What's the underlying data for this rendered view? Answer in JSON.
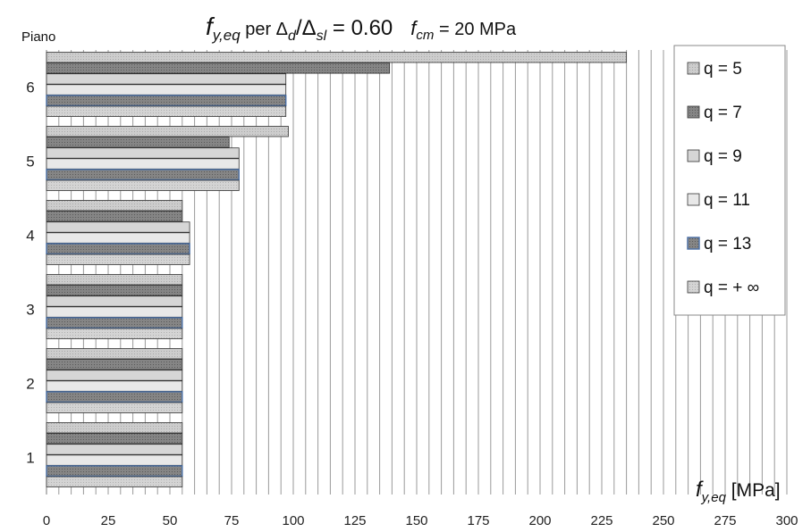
{
  "chart_data": {
    "type": "bar",
    "orientation": "horizontal",
    "title": {
      "symbol": "f",
      "symbol_sub": "y,eq",
      "mid": " per Δ",
      "sub_d": "d",
      "slash": "/Δ",
      "sub_sl": "sl",
      "ratio": " = 0.60",
      "fcm_symbol": "f",
      "fcm_sub": "cm",
      "fcm_value": " = 20 MPa"
    },
    "ylabel": "Piano",
    "xlabel": {
      "symbol": "f",
      "sub": "y,eq",
      "unit": " [MPa]"
    },
    "categories": [
      "1",
      "2",
      "3",
      "4",
      "5",
      "6"
    ],
    "xlim": [
      0,
      300
    ],
    "xticks": [
      0,
      25,
      50,
      75,
      100,
      125,
      150,
      175,
      200,
      225,
      250,
      275,
      300
    ],
    "grid": "vertical",
    "legend_position": "right",
    "series": [
      {
        "name": "q = 5",
        "values": [
          55,
          55,
          55,
          55,
          98,
          235
        ],
        "color": "#c4c4c4",
        "pattern": "dots"
      },
      {
        "name": "q = 7",
        "values": [
          55,
          55,
          55,
          55,
          74,
          139
        ],
        "color": "#7d7d7d",
        "pattern": "dots"
      },
      {
        "name": "q = 9",
        "values": [
          55,
          55,
          55,
          58,
          78,
          97
        ],
        "color": "#d6d6d6",
        "pattern": "none"
      },
      {
        "name": "q = 11",
        "values": [
          55,
          55,
          55,
          58,
          78,
          97
        ],
        "color": "#e8e8e8",
        "pattern": "none"
      },
      {
        "name": "q = 13",
        "values": [
          55,
          55,
          55,
          58,
          78,
          97
        ],
        "color": "#8a8a8a",
        "pattern": "dots",
        "border": "#4a6fa5"
      },
      {
        "name": "q =  + ∞",
        "values": [
          55,
          55,
          55,
          58,
          78,
          97
        ],
        "color": "#cfcfcf",
        "pattern": "dots"
      }
    ]
  }
}
